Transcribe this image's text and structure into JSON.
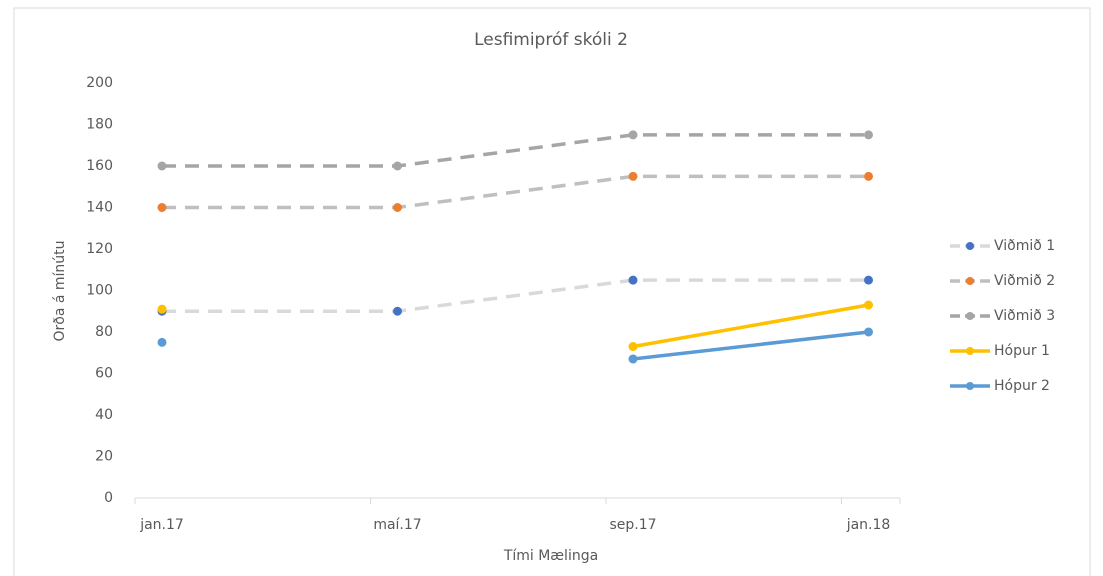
{
  "chart_data": {
    "type": "line",
    "title": "Lesfimipróf skóli 2",
    "x_label": "Tími Mælinga",
    "y_label": "Orða á mínútu",
    "categories": [
      "jan.17",
      "maí.17",
      "sep.17",
      "jan.18"
    ],
    "series": [
      {
        "name": "Viðmið 1",
        "color": "#d9d9d9",
        "marker_color": "#4472c4",
        "dashed": true,
        "values": [
          90,
          90,
          105,
          105
        ]
      },
      {
        "name": "Viðmið 2",
        "color": "#bfbfbf",
        "marker_color": "#ed7d31",
        "dashed": true,
        "values": [
          140,
          140,
          155,
          155
        ]
      },
      {
        "name": "Viðmið 3",
        "color": "#a5a5a5",
        "marker_color": "#a5a5a5",
        "dashed": true,
        "values": [
          160,
          160,
          175,
          175
        ]
      },
      {
        "name": "Hópur 1",
        "color": "#ffc000",
        "marker_color": "#ffc000",
        "dashed": false,
        "values": [
          91,
          null,
          73,
          93
        ]
      },
      {
        "name": "Hópur 2",
        "color": "#5b9bd5",
        "marker_color": "#5b9bd5",
        "dashed": false,
        "values": [
          75,
          null,
          67,
          80
        ]
      }
    ],
    "ylim": [
      0,
      200
    ],
    "yticks": [
      0,
      20,
      40,
      60,
      80,
      100,
      120,
      140,
      160,
      180,
      200
    ],
    "grid": false,
    "legend": "right"
  }
}
